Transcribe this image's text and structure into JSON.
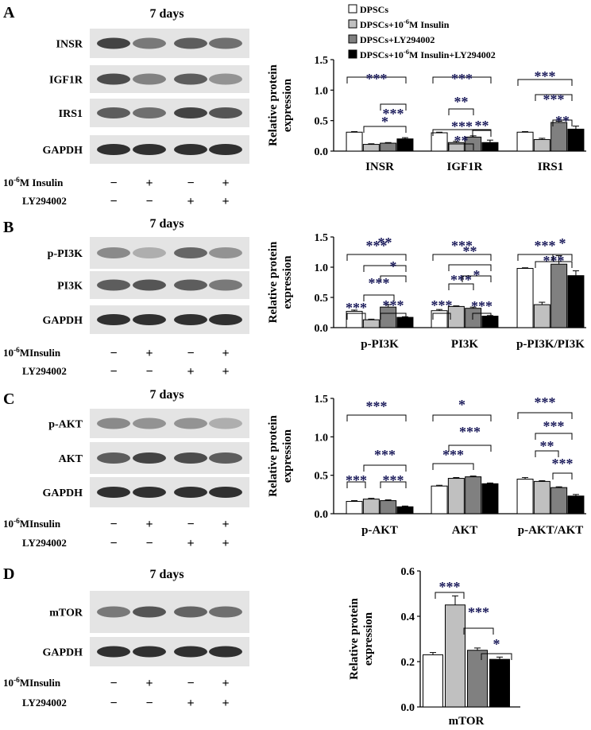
{
  "colors": {
    "dpscs": "#ffffff",
    "insulin": "#c0c0c0",
    "ly": "#808080",
    "combo": "#000000",
    "sig": "#1a1a5a"
  },
  "legend": [
    {
      "text": "DPSCs",
      "color": "#ffffff"
    },
    {
      "text": "DPSCs+10^-6M Insulin",
      "color": "#c0c0c0"
    },
    {
      "text": "DPSCs+LY294002",
      "color": "#808080"
    },
    {
      "text": "DPSCs+10^-6M Insulin+LY294002",
      "color": "#000000"
    }
  ],
  "panels": [
    {
      "letter": "A",
      "title": "7 days",
      "bands": [
        "INSR",
        "IGF1R",
        "IRS1",
        "GAPDH"
      ],
      "insulin_label": "10^-6M Insulin",
      "ly_label": "LY294002",
      "insulin_marks": [
        "−",
        "+",
        "−",
        "+"
      ],
      "ly_marks": [
        "−",
        "−",
        "+",
        "+"
      ]
    },
    {
      "letter": "B",
      "title": "7 days",
      "bands": [
        "p-PI3K",
        "PI3K",
        "GAPDH"
      ],
      "insulin_label": "10^-6MInsulin",
      "ly_label": "LY294002",
      "insulin_marks": [
        "−",
        "+",
        "−",
        "+"
      ],
      "ly_marks": [
        "−",
        "−",
        "+",
        "+"
      ]
    },
    {
      "letter": "C",
      "title": "7 days",
      "bands": [
        "p-AKT",
        "AKT",
        "GAPDH"
      ],
      "insulin_label": "10^-6MInsulin",
      "ly_label": "LY294002",
      "insulin_marks": [
        "−",
        "+",
        "−",
        "+"
      ],
      "ly_marks": [
        "−",
        "−",
        "+",
        "+"
      ]
    },
    {
      "letter": "D",
      "title": "7 days",
      "bands": [
        "mTOR",
        "GAPDH"
      ],
      "insulin_label": "10^-6MInsulin",
      "ly_label": "LY294002",
      "insulin_marks": [
        "−",
        "+",
        "−",
        "+"
      ],
      "ly_marks": [
        "−",
        "−",
        "+",
        "+"
      ]
    }
  ],
  "chart_data": [
    {
      "type": "bar",
      "ylabel": "Relative protein expression",
      "ylim": [
        0,
        1.5
      ],
      "yticks": [
        "0.0",
        "0.5",
        "1.0",
        "1.5"
      ],
      "categories": [
        "INSR",
        "IGF1R",
        "IRS1"
      ],
      "series": [
        {
          "name": "DPSCs",
          "values": [
            0.31,
            0.3,
            0.31
          ],
          "errors": [
            0.01,
            0.01,
            0.01
          ]
        },
        {
          "name": "DPSCs+10^-6M Insulin",
          "values": [
            0.11,
            0.14,
            0.19
          ],
          "errors": [
            0.01,
            0.02,
            0.02
          ]
        },
        {
          "name": "DPSCs+LY294002",
          "values": [
            0.13,
            0.23,
            0.47
          ],
          "errors": [
            0.01,
            0.02,
            0.02
          ]
        },
        {
          "name": "DPSCs+10^-6M Insulin+LY294002",
          "values": [
            0.2,
            0.14,
            0.36
          ],
          "errors": [
            0.02,
            0.04,
            0.05
          ]
        }
      ],
      "significance": [
        "***",
        "***",
        "*",
        "***",
        "**",
        "***",
        "**",
        "**",
        "***",
        "***",
        "**"
      ]
    },
    {
      "type": "bar",
      "ylabel": "Relative protein expression",
      "ylim": [
        0,
        1.5
      ],
      "yticks": [
        "0.0",
        "0.5",
        "1.0",
        "1.5"
      ],
      "categories": [
        "p-PI3K",
        "PI3K",
        "p-PI3K/PI3K"
      ],
      "series": [
        {
          "name": "DPSCs",
          "values": [
            0.27,
            0.28,
            0.98
          ],
          "errors": [
            0.02,
            0.02,
            0.01
          ]
        },
        {
          "name": "DPSCs+10^-6M Insulin",
          "values": [
            0.13,
            0.35,
            0.38
          ],
          "errors": [
            0.01,
            0.01,
            0.04
          ]
        },
        {
          "name": "DPSCs+LY294002",
          "values": [
            0.34,
            0.32,
            1.05
          ],
          "errors": [
            0.04,
            0.02,
            0.14
          ]
        },
        {
          "name": "DPSCs+10^-6M Insulin+LY294002",
          "values": [
            0.17,
            0.19,
            0.86
          ],
          "errors": [
            0.01,
            0.01,
            0.08
          ]
        }
      ],
      "significance": [
        "***",
        "**",
        "*",
        "***",
        "***",
        "***",
        "***",
        "**",
        "***",
        "*",
        "***",
        "***",
        "***",
        "***",
        "*"
      ]
    },
    {
      "type": "bar",
      "ylabel": "Relative protein expression",
      "ylim": [
        0,
        1.5
      ],
      "yticks": [
        "0.0",
        "0.5",
        "1.0",
        "1.5"
      ],
      "categories": [
        "p-AKT",
        "AKT",
        "p-AKT/AKT"
      ],
      "series": [
        {
          "name": "DPSCs",
          "values": [
            0.16,
            0.36,
            0.45
          ],
          "errors": [
            0.01,
            0.01,
            0.02
          ]
        },
        {
          "name": "DPSCs+10^-6M Insulin",
          "values": [
            0.19,
            0.46,
            0.42
          ],
          "errors": [
            0.01,
            0.01,
            0.01
          ]
        },
        {
          "name": "DPSCs+LY294002",
          "values": [
            0.17,
            0.48,
            0.34
          ],
          "errors": [
            0.01,
            0.01,
            0.01
          ]
        },
        {
          "name": "DPSCs+10^-6M Insulin+LY294002",
          "values": [
            0.09,
            0.39,
            0.23
          ],
          "errors": [
            0.01,
            0.01,
            0.02
          ]
        }
      ],
      "significance": [
        "***",
        "***",
        "***",
        "***",
        "*",
        "***",
        "***",
        "***",
        "***",
        "**",
        "***"
      ]
    },
    {
      "type": "bar",
      "ylabel": "Relative protein expression",
      "ylim": [
        0,
        0.6
      ],
      "yticks": [
        "0.0",
        "0.2",
        "0.4",
        "0.6"
      ],
      "categories": [
        "mTOR"
      ],
      "series": [
        {
          "name": "DPSCs",
          "values": [
            0.23
          ],
          "errors": [
            0.01
          ]
        },
        {
          "name": "DPSCs+10^-6M Insulin",
          "values": [
            0.45
          ],
          "errors": [
            0.04
          ]
        },
        {
          "name": "DPSCs+LY294002",
          "values": [
            0.25
          ],
          "errors": [
            0.01
          ]
        },
        {
          "name": "DPSCs+10^-6M Insulin+LY294002",
          "values": [
            0.21
          ],
          "errors": [
            0.01
          ]
        }
      ],
      "significance": [
        "***",
        "***",
        "*"
      ]
    }
  ]
}
